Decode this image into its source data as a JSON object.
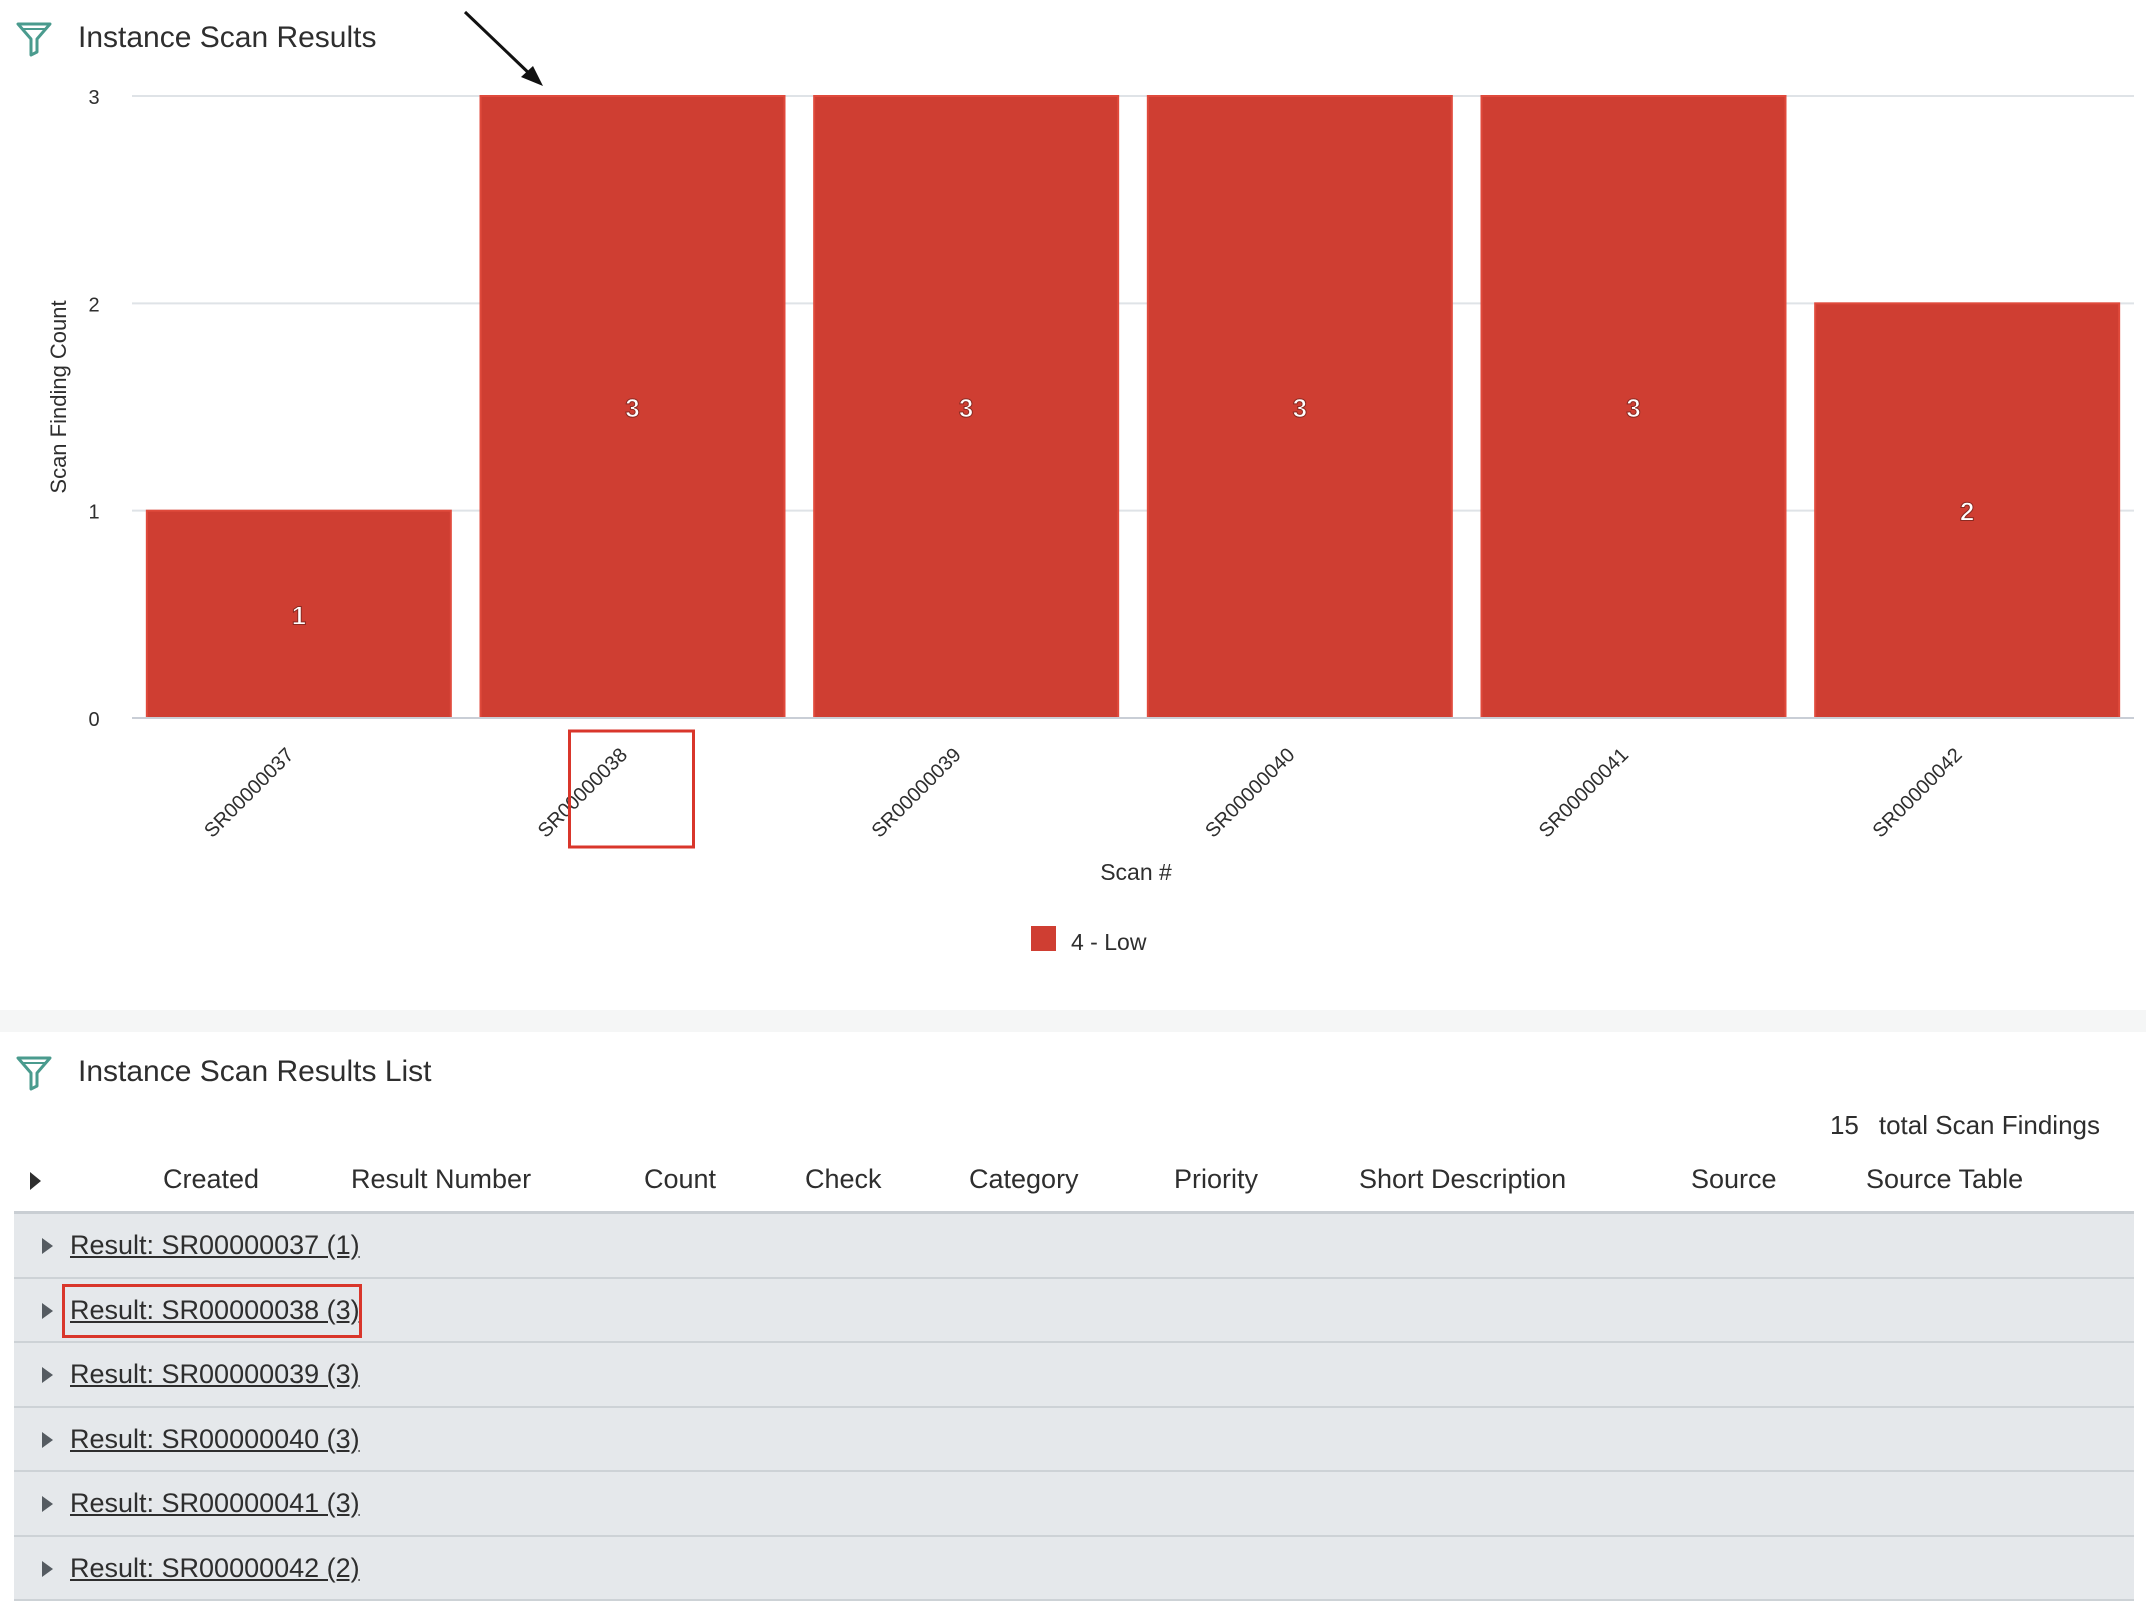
{
  "chart_widget": {
    "title": "Instance Scan Results",
    "filter_icon": "filter-icon"
  },
  "chart_data": {
    "type": "bar",
    "categories": [
      "SR00000037",
      "SR00000038",
      "SR00000039",
      "SR00000040",
      "SR00000041",
      "SR00000042"
    ],
    "series": [
      {
        "name": "4 - Low",
        "values": [
          1,
          3,
          3,
          3,
          3,
          2
        ],
        "color": "#cf3e32"
      }
    ],
    "data_labels": [
      "1",
      "3",
      "3",
      "3",
      "3",
      "2"
    ],
    "yticks": [
      "0",
      "1",
      "2",
      "3"
    ],
    "xlabel": "Scan #",
    "ylabel": "Scan Finding Count",
    "ylim": [
      0,
      3
    ],
    "grid": true,
    "legend_position": "bottom",
    "highlighted_category": "SR00000038",
    "annotation": "arrow pointing to SR00000038 bar"
  },
  "list_widget": {
    "title": "Instance Scan Results List",
    "filter_icon": "filter-icon",
    "total_count": "15",
    "total_label": "total Scan Findings",
    "columns": [
      "Created",
      "Result Number",
      "Count",
      "Check",
      "Category",
      "Priority",
      "Short Description",
      "Source",
      "Source Table"
    ],
    "groups": [
      {
        "label": "Result: SR00000037 (1)"
      },
      {
        "label": "Result: SR00000038 (3)",
        "highlighted": true
      },
      {
        "label": "Result: SR00000039 (3)"
      },
      {
        "label": "Result: SR00000040 (3)"
      },
      {
        "label": "Result: SR00000041 (3)"
      },
      {
        "label": "Result: SR00000042 (2)"
      }
    ]
  },
  "colors": {
    "bar": "#cf3e32",
    "highlight": "#d9362b",
    "row_bg": "#e5e8eb"
  }
}
